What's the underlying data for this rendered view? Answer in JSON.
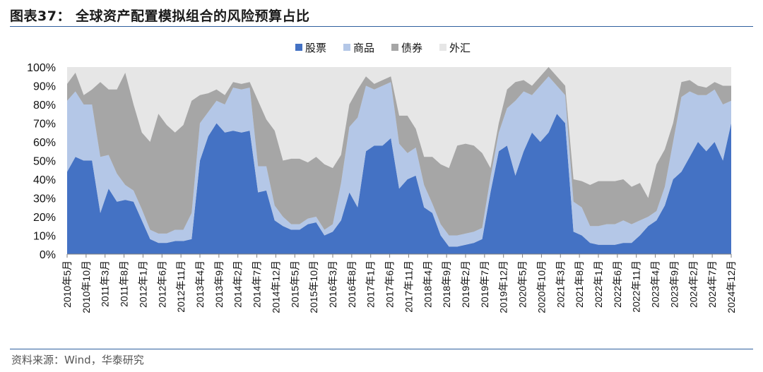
{
  "title": "图表37：  全球资产配置模拟组合的风险预算占比",
  "source": "资料来源：Wind，华泰研究",
  "colors": {
    "equity": "#4472c4",
    "commodity": "#b4c7e7",
    "bond": "#a6a6a6",
    "fx": "#e6e6e6",
    "rule": "#2f5f9e"
  },
  "chart_data": {
    "type": "area",
    "stacked": true,
    "ylim": [
      0,
      100
    ],
    "yticks": [
      "0%",
      "10%",
      "20%",
      "30%",
      "40%",
      "50%",
      "60%",
      "70%",
      "80%",
      "90%",
      "100%"
    ],
    "xtick_labels": [
      "2010年5月",
      "2010年10月",
      "2011年3月",
      "2011年8月",
      "2012年1月",
      "2012年6月",
      "2012年11月",
      "2013年4月",
      "2013年9月",
      "2014年2月",
      "2014年7月",
      "2014年12月",
      "2015年5月",
      "2015年10月",
      "2016年3月",
      "2016年8月",
      "2017年1月",
      "2017年6月",
      "2017年11月",
      "2018年4月",
      "2018年9月",
      "2019年2月",
      "2019年7月",
      "2019年12月",
      "2020年5月",
      "2020年10月",
      "2021年3月",
      "2021年8月",
      "2022年1月",
      "2022年6月",
      "2022年11月",
      "2023年4月",
      "2023年9月",
      "2024年2月",
      "2024年7月",
      "2024年12月"
    ],
    "legend_position": "top-center",
    "series": [
      {
        "name": "股票",
        "color": "#4472c4",
        "values": [
          44,
          52,
          50,
          50,
          22,
          35,
          28,
          29,
          28,
          18,
          8,
          6,
          6,
          7,
          7,
          8,
          50,
          63,
          70,
          65,
          66,
          65,
          66,
          33,
          34,
          18,
          15,
          13,
          13,
          16,
          17,
          10,
          12,
          18,
          33,
          25,
          55,
          58,
          58,
          62,
          35,
          40,
          42,
          25,
          22,
          10,
          4,
          4,
          5,
          6,
          8,
          33,
          55,
          58,
          42,
          55,
          65,
          60,
          65,
          75,
          70,
          12,
          10,
          6,
          5,
          5,
          5,
          6,
          6,
          10,
          15,
          18,
          26,
          40,
          44,
          52,
          60,
          55,
          60,
          50,
          70
        ]
      },
      {
        "name": "商品",
        "color": "#b4c7e7",
        "values": [
          38,
          35,
          30,
          30,
          30,
          18,
          15,
          8,
          6,
          6,
          5,
          5,
          5,
          6,
          6,
          14,
          20,
          13,
          12,
          15,
          23,
          23,
          23,
          14,
          13,
          8,
          5,
          3,
          3,
          3,
          3,
          3,
          4,
          20,
          35,
          48,
          35,
          30,
          32,
          30,
          24,
          14,
          15,
          12,
          5,
          6,
          6,
          6,
          6,
          6,
          6,
          8,
          10,
          20,
          40,
          32,
          20,
          30,
          30,
          15,
          15,
          16,
          15,
          9,
          10,
          11,
          11,
          12,
          10,
          8,
          5,
          5,
          10,
          20,
          40,
          35,
          25,
          30,
          28,
          30,
          12
        ]
      },
      {
        "name": "债券",
        "color": "#a6a6a6",
        "values": [
          9,
          10,
          5,
          8,
          40,
          35,
          45,
          60,
          46,
          41,
          47,
          64,
          58,
          52,
          56,
          60,
          15,
          10,
          6,
          5,
          3,
          3,
          3,
          35,
          25,
          40,
          30,
          35,
          35,
          30,
          32,
          35,
          30,
          15,
          12,
          15,
          5,
          3,
          3,
          3,
          15,
          20,
          10,
          15,
          25,
          32,
          36,
          48,
          48,
          46,
          40,
          5,
          5,
          10,
          10,
          6,
          5,
          5,
          5,
          5,
          5,
          12,
          14,
          22,
          24,
          23,
          23,
          22,
          20,
          20,
          10,
          25,
          20,
          10,
          8,
          6,
          5,
          4,
          4,
          10,
          8
        ]
      }
    ]
  }
}
